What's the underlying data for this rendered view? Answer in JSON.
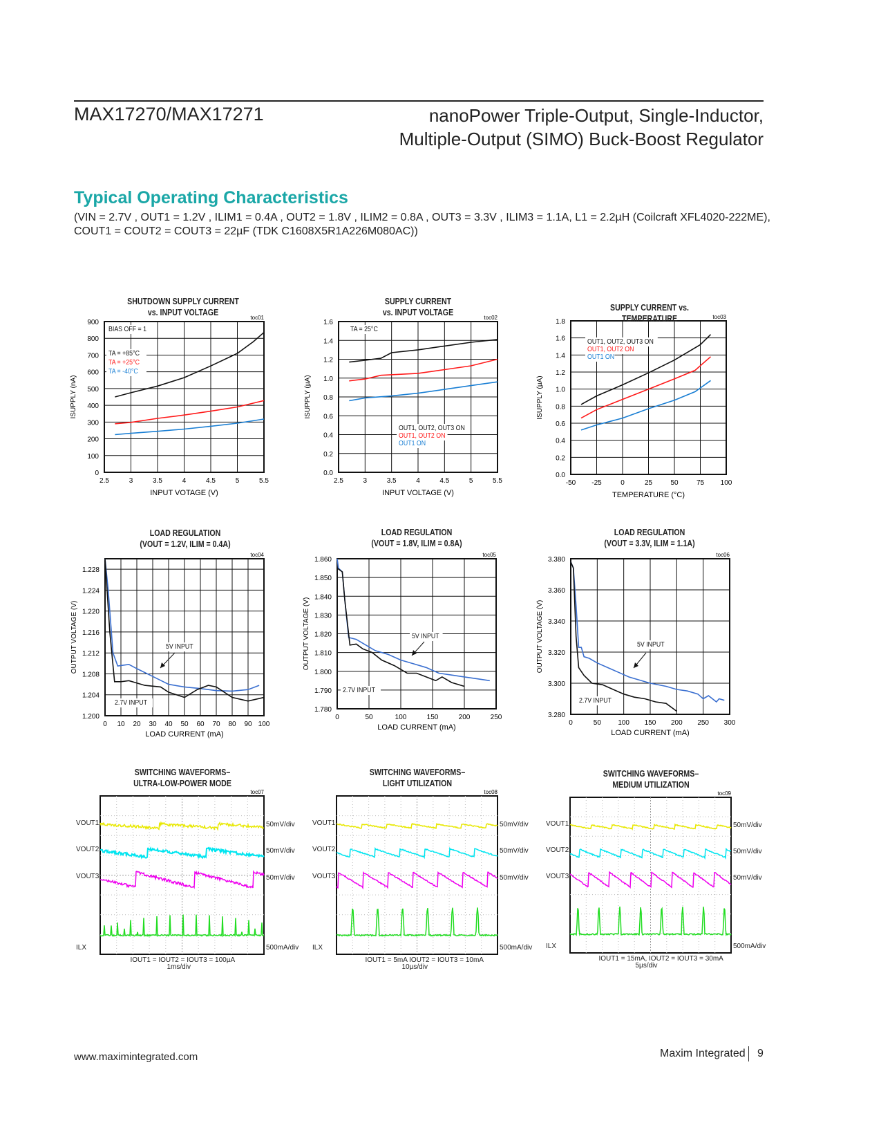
{
  "header": {
    "part_number": "MAX17270/MAX17271",
    "title_line1": "nanoPower Triple-Output, Single-Inductor,",
    "title_line2": "Multiple-Output (SIMO) Buck-Boost Regulator"
  },
  "section": {
    "title": "Typical Operating Characteristics",
    "conditions_line1": "(VIN = 2.7V , OUT1 = 1.2V , ILIM1 = 0.4A , OUT2 = 1.8V , ILIM2 = 0.8A , OUT3 = 3.3V , ILIM3 = 1.1A, L1 = 2.2µH (Coilcraft XFL4020-222ME),",
    "conditions_line2": "COUT1 = COUT2 = COUT3 = 22µF (TDK C1608X5R1A226M080AC))"
  },
  "colors": {
    "accent": "#1aa7a7",
    "black": "#111111",
    "red": "#ff1a1a",
    "blue": "#1a7fd4",
    "blue_load": "#3a6fd0",
    "yellow": "#e8e800",
    "cyan": "#00e5f0",
    "magenta": "#ee00ee",
    "green": "#22dd22"
  },
  "chart_data": [
    {
      "type": "line",
      "id": "toc01",
      "title": "SHUTDOWN SUPPLY CURRENT\nvs. INPUT VOLTAGE",
      "xlabel": "INPUT VOTAGE (V)",
      "ylabel": "ISUPPLY (nA)",
      "xlim": [
        2.5,
        5.5
      ],
      "ylim": [
        0,
        900
      ],
      "xticks": [
        "2.5",
        "3",
        "3.5",
        "4",
        "4.5",
        "5",
        "5.5"
      ],
      "yticks": [
        "0",
        "100",
        "200",
        "300",
        "400",
        "500",
        "600",
        "700",
        "800",
        "900"
      ],
      "grid": true,
      "annotations": [
        "BIAS OFF = 1",
        "TA = +85°C",
        "TA = +25°C",
        "TA = -40°C"
      ],
      "series": [
        {
          "name": "TA = +85°C",
          "color": "#111111",
          "x": [
            2.7,
            3,
            3.5,
            4,
            4.5,
            5,
            5.3,
            5.5
          ],
          "y": [
            450,
            475,
            515,
            565,
            635,
            710,
            780,
            835
          ]
        },
        {
          "name": "TA = +25°C",
          "color": "#ff1a1a",
          "x": [
            2.7,
            3,
            3.5,
            4,
            4.5,
            5,
            5.5
          ],
          "y": [
            290,
            298,
            322,
            342,
            365,
            390,
            428
          ]
        },
        {
          "name": "TA = -40°C",
          "color": "#1a7fd4",
          "x": [
            2.7,
            3,
            3.5,
            4,
            4.5,
            5,
            5.5
          ],
          "y": [
            225,
            233,
            245,
            258,
            275,
            293,
            318
          ]
        }
      ]
    },
    {
      "type": "line",
      "id": "toc02",
      "title": "SUPPLY CURRENT\nvs. INPUT VOLTAGE",
      "xlabel": "INPUT VOLTAGE (V)",
      "ylabel": "ISUPPLY (µA)",
      "xlim": [
        2.5,
        5.5
      ],
      "ylim": [
        0,
        1.6
      ],
      "xticks": [
        "2.5",
        "3",
        "3.5",
        "4",
        "4.5",
        "5",
        "5.5"
      ],
      "yticks": [
        "0.0",
        "0.2",
        "0.4",
        "0.6",
        "0.8",
        "1.0",
        "1.2",
        "1.4",
        "1.6"
      ],
      "grid": true,
      "annotations": [
        "TA = 25°C",
        "OUT1, OUT2, OUT3 ON",
        "OUT1, OUT2 ON",
        "OUT1 ON"
      ],
      "series": [
        {
          "name": "OUT1, OUT2, OUT3 ON",
          "color": "#111111",
          "x": [
            2.7,
            3,
            3.3,
            3.5,
            4,
            4.5,
            5,
            5.5
          ],
          "y": [
            1.17,
            1.19,
            1.21,
            1.27,
            1.3,
            1.34,
            1.38,
            1.41
          ]
        },
        {
          "name": "OUT1, OUT2 ON",
          "color": "#ff1a1a",
          "x": [
            2.7,
            3,
            3.3,
            4,
            4.5,
            5,
            5.5
          ],
          "y": [
            0.97,
            0.99,
            1.03,
            1.05,
            1.09,
            1.13,
            1.2
          ]
        },
        {
          "name": "OUT1 ON",
          "color": "#1a7fd4",
          "x": [
            2.7,
            3,
            3.5,
            4,
            4.5,
            5,
            5.5
          ],
          "y": [
            0.76,
            0.79,
            0.81,
            0.84,
            0.88,
            0.92,
            0.96
          ]
        }
      ]
    },
    {
      "type": "line",
      "id": "toc03",
      "title": "SUPPLY CURRENT vs. TEMPERATURE",
      "xlabel": "TEMPERATURE (°C)",
      "ylabel": "ISUPPLY (µA)",
      "xlim": [
        -50,
        100
      ],
      "ylim": [
        0,
        1.8
      ],
      "xticks": [
        "-50",
        "-25",
        "0",
        "25",
        "50",
        "75",
        "100"
      ],
      "yticks": [
        "0.0",
        "0.2",
        "0.4",
        "0.6",
        "0.8",
        "1.0",
        "1.2",
        "1.4",
        "1.6",
        "1.8"
      ],
      "grid": true,
      "annotations": [
        "OUT1, OUT2, OUT3 ON",
        "OUT1, OUT2 ON",
        "OUT1 ON"
      ],
      "series": [
        {
          "name": "OUT1, OUT2, OUT3 ON",
          "color": "#111111",
          "x": [
            -40,
            -25,
            0,
            25,
            50,
            75,
            85
          ],
          "y": [
            0.82,
            0.92,
            1.05,
            1.19,
            1.34,
            1.52,
            1.64
          ]
        },
        {
          "name": "OUT1, OUT2 ON",
          "color": "#ff1a1a",
          "x": [
            -40,
            -25,
            0,
            25,
            50,
            70,
            85
          ],
          "y": [
            0.66,
            0.76,
            0.88,
            1.0,
            1.12,
            1.22,
            1.38
          ]
        },
        {
          "name": "OUT1 ON",
          "color": "#1a7fd4",
          "x": [
            -40,
            -25,
            0,
            25,
            50,
            70,
            85
          ],
          "y": [
            0.52,
            0.58,
            0.66,
            0.77,
            0.87,
            0.97,
            1.1
          ]
        }
      ]
    },
    {
      "type": "line",
      "id": "toc04",
      "title": "LOAD REGULATION\n(VOUT = 1.2V, ILIM = 0.4A)",
      "xlabel": "LOAD CURRENT (mA)",
      "ylabel": "OUTPUT VOLTAGE (V)",
      "xlim": [
        0,
        100
      ],
      "ylim": [
        1.2,
        1.23
      ],
      "xticks": [
        "0",
        "10",
        "20",
        "30",
        "40",
        "50",
        "60",
        "70",
        "80",
        "90",
        "100"
      ],
      "yticks": [
        "1.200",
        "1.204",
        "1.208",
        "1.212",
        "1.216",
        "1.220",
        "1.224",
        "1.228"
      ],
      "grid": true,
      "annotations": [
        "5V INPUT",
        "2.7V INPUT"
      ],
      "series": [
        {
          "name": "5V INPUT",
          "color": "#3a6fd0",
          "x": [
            0,
            2,
            5,
            8,
            15,
            20,
            30,
            40,
            50,
            60,
            70,
            80,
            90,
            97
          ],
          "y": [
            1.23,
            1.224,
            1.212,
            1.2095,
            1.2098,
            1.209,
            1.2075,
            1.206,
            1.2055,
            1.2052,
            1.2048,
            1.2047,
            1.205,
            1.2058
          ]
        },
        {
          "name": "2.7V INPUT",
          "color": "#111111",
          "x": [
            0,
            3,
            6,
            10,
            15,
            25,
            35,
            40,
            50,
            58,
            65,
            70,
            80,
            90,
            100
          ],
          "y": [
            1.23,
            1.216,
            1.2065,
            1.2065,
            1.2067,
            1.2058,
            1.2055,
            1.2045,
            1.2035,
            1.205,
            1.2058,
            1.2055,
            1.2035,
            1.2028,
            1.2035
          ]
        }
      ]
    },
    {
      "type": "line",
      "id": "toc05",
      "title": "LOAD REGULATION\n(VOUT = 1.8V, ILIM = 0.8A)",
      "xlabel": "LOAD CURRENT (mA)",
      "ylabel": "OUTPUT VOLTAGE (V)",
      "xlim": [
        0,
        250
      ],
      "ylim": [
        1.78,
        1.86
      ],
      "xticks": [
        "0",
        "50",
        "100",
        "150",
        "200",
        "250"
      ],
      "yticks": [
        "1.780",
        "1.790",
        "1.800",
        "1.810",
        "1.820",
        "1.830",
        "1.840",
        "1.850",
        "1.860"
      ],
      "grid": true,
      "annotations": [
        "5V INPUT",
        "2.7V INPUT"
      ],
      "series": [
        {
          "name": "5V INPUT",
          "color": "#3a6fd0",
          "x": [
            0,
            2,
            8,
            12,
            18,
            30,
            40,
            60,
            80,
            100,
            120,
            140,
            160,
            180,
            200,
            220,
            240
          ],
          "y": [
            1.86,
            1.855,
            1.853,
            1.838,
            1.818,
            1.817,
            1.815,
            1.811,
            1.809,
            1.806,
            1.804,
            1.802,
            1.799,
            1.798,
            1.797,
            1.796,
            1.795
          ]
        },
        {
          "name": "2.7V INPUT",
          "color": "#111111",
          "x": [
            0,
            8,
            12,
            20,
            30,
            40,
            55,
            70,
            90,
            110,
            125,
            140,
            155,
            165,
            180,
            200
          ],
          "y": [
            1.855,
            1.853,
            1.838,
            1.814,
            1.8145,
            1.812,
            1.81,
            1.806,
            1.803,
            1.799,
            1.799,
            1.797,
            1.795,
            1.797,
            1.794,
            1.792
          ]
        }
      ]
    },
    {
      "type": "line",
      "id": "toc06",
      "title": "LOAD REGULATION\n(VOUT = 3.3V, ILIM = 1.1A)",
      "xlabel": "LOAD CURRENT (mA)",
      "ylabel": "OUTPUT VOLTAGE (V)",
      "xlim": [
        0,
        300
      ],
      "ylim": [
        3.28,
        3.38
      ],
      "xticks": [
        "0",
        "50",
        "100",
        "150",
        "200",
        "250",
        "300"
      ],
      "yticks": [
        "3.280",
        "3.300",
        "3.320",
        "3.340",
        "3.360",
        "3.380"
      ],
      "grid": true,
      "annotations": [
        "5V INPUT",
        "2.7V INPUT"
      ],
      "series": [
        {
          "name": "5V INPUT",
          "color": "#3a6fd0",
          "x": [
            0,
            5,
            10,
            15,
            20,
            25,
            35,
            50,
            70,
            90,
            110,
            130,
            150,
            180,
            200,
            220,
            240,
            250,
            260,
            275,
            280,
            290
          ],
          "y": [
            3.378,
            3.374,
            3.35,
            3.323,
            3.323,
            3.317,
            3.316,
            3.313,
            3.31,
            3.307,
            3.304,
            3.302,
            3.3,
            3.298,
            3.296,
            3.295,
            3.293,
            3.29,
            3.292,
            3.288,
            3.29,
            3.289
          ]
        },
        {
          "name": "2.7V INPUT",
          "color": "#111111",
          "x": [
            0,
            5,
            10,
            15,
            25,
            40,
            60,
            80,
            100,
            120,
            140,
            160,
            180,
            200
          ],
          "y": [
            3.378,
            3.374,
            3.33,
            3.31,
            3.305,
            3.3,
            3.299,
            3.296,
            3.293,
            3.291,
            3.29,
            3.288,
            3.287,
            3.282
          ]
        }
      ]
    }
  ],
  "scopes": [
    {
      "id": "toc07",
      "title": "SWITCHING WAVEFORMS–\nULTRA-LOW-POWER MODE",
      "channels": [
        "VOUT1",
        "VOUT2",
        "VOUT3",
        "ILX"
      ],
      "scales": [
        "50mV/div",
        "50mV/div",
        "50mV/div",
        "500mA/div"
      ],
      "conditions": "IOUT1 = IOUT2 = IOUT3 = 100µA",
      "timebase": "1ms/div"
    },
    {
      "id": "toc08",
      "title": "SWITCHING WAVEFORMS–\nLIGHT UTILIZATION",
      "channels": [
        "VOUT1",
        "VOUT2",
        "VOUT3",
        "ILX"
      ],
      "scales": [
        "50mV/div",
        "50mV/div",
        "50mV/div",
        "500mA/div"
      ],
      "conditions": "IOUT1 = 5mA  IOUT2 = IOUT3 = 10mA",
      "timebase": "10µs/div"
    },
    {
      "id": "toc09",
      "title": "SWITCHING WAVEFORMS–\nMEDIUM UTILIZATION",
      "channels": [
        "VOUT1",
        "VOUT2",
        "VOUT3",
        "ILX"
      ],
      "scales": [
        "50mV/div",
        "50mV/div",
        "50mV/div",
        "500mA/div"
      ],
      "conditions": "IOUT1 = 15mA, IOUT2 = IOUT3 = 30mA",
      "timebase": "5µs/div"
    }
  ],
  "footer": {
    "url": "www.maximintegrated.com",
    "company": "Maxim Integrated",
    "page": "9"
  }
}
